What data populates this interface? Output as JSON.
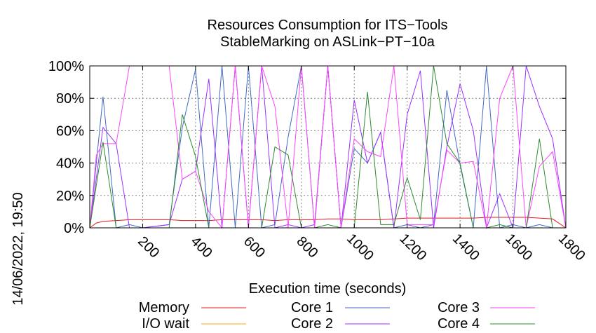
{
  "chart_data": {
    "type": "line",
    "title": "Resources Consumption for ITS−Tools",
    "subtitle": "StableMarking on ASLink−PT−10a",
    "xlabel": "Execution time (seconds)",
    "ylabel": "",
    "side_label": "14/06/2022, 19:50",
    "xlim": [
      0,
      1800
    ],
    "ylim": [
      0,
      100
    ],
    "x_ticks": [
      200,
      400,
      600,
      800,
      1000,
      1200,
      1400,
      1600,
      1800
    ],
    "y_ticks": [
      0,
      20,
      40,
      60,
      80,
      100
    ],
    "y_tick_labels": [
      "0%",
      "20%",
      "40%",
      "60%",
      "80%",
      "100%"
    ],
    "grid": true,
    "legend_position": "bottom",
    "series": [
      {
        "name": "Memory",
        "color": "#e41a1c",
        "x": [
          0,
          25,
          50,
          100,
          150,
          200,
          250,
          300,
          350,
          400,
          450,
          500,
          550,
          600,
          650,
          700,
          750,
          800,
          850,
          900,
          950,
          1000,
          1050,
          1100,
          1150,
          1200,
          1250,
          1300,
          1350,
          1400,
          1450,
          1500,
          1550,
          1600,
          1650,
          1700,
          1750,
          1800
        ],
        "y": [
          0,
          3,
          4,
          4.5,
          5,
          5,
          5,
          5,
          4.5,
          4.5,
          4.5,
          5,
          5,
          5,
          5,
          4.5,
          5,
          5,
          5,
          5.5,
          5.5,
          5,
          5,
          5,
          5.5,
          6,
          6,
          6,
          6,
          6,
          6,
          6.5,
          6.5,
          6.5,
          6.5,
          6,
          5.5,
          0
        ]
      },
      {
        "name": "I/O wait",
        "color": "#ffa500",
        "x": [
          0,
          1800
        ],
        "y": [
          0,
          0
        ]
      },
      {
        "name": "Core 1",
        "color": "#4169c4",
        "x": [
          0,
          50,
          100,
          150,
          200,
          300,
          350,
          400,
          450,
          500,
          550,
          600,
          650,
          700,
          750,
          800,
          850,
          900,
          950,
          1000,
          1050,
          1100,
          1150,
          1200,
          1250,
          1300,
          1350,
          1400,
          1450,
          1500,
          1550,
          1600,
          1650,
          1700,
          1750,
          1800
        ],
        "y": [
          0,
          81,
          0,
          2,
          0,
          2,
          62,
          98,
          0,
          100,
          0,
          100,
          0,
          2,
          56,
          100,
          0,
          100,
          0,
          49,
          40,
          59,
          0,
          2,
          0,
          2,
          85,
          39,
          0,
          100,
          0,
          2,
          0,
          2,
          0,
          0
        ]
      },
      {
        "name": "Core 2",
        "color": "#9b30ff",
        "x": [
          0,
          50,
          100,
          150,
          200,
          300,
          350,
          400,
          450,
          500,
          550,
          600,
          650,
          700,
          750,
          800,
          850,
          900,
          950,
          1000,
          1050,
          1100,
          1150,
          1200,
          1250,
          1300,
          1350,
          1400,
          1450,
          1500,
          1550,
          1600,
          1650,
          1700,
          1750,
          1800
        ],
        "y": [
          0,
          62,
          52,
          0,
          0,
          2,
          30,
          35,
          92,
          0,
          100,
          0,
          100,
          0,
          2,
          0,
          2,
          100,
          0,
          79,
          40,
          59,
          0,
          70,
          97,
          0,
          50,
          89,
          60,
          0,
          21,
          0,
          100,
          75,
          55,
          0
        ]
      },
      {
        "name": "Core 3",
        "color": "#ff44ff",
        "x": [
          0,
          25,
          50,
          100,
          150,
          200,
          300,
          350,
          400,
          450,
          500,
          550,
          600,
          650,
          700,
          750,
          800,
          850,
          900,
          950,
          1000,
          1050,
          1100,
          1150,
          1200,
          1250,
          1300,
          1350,
          1400,
          1450,
          1500,
          1550,
          1600,
          1650,
          1700,
          1750,
          1800
        ],
        "y": [
          0,
          45,
          52,
          52,
          100,
          100,
          100,
          30,
          35,
          10,
          0,
          100,
          0,
          100,
          75,
          0,
          100,
          0,
          100,
          0,
          55,
          47,
          44,
          100,
          2,
          2,
          2,
          48,
          40,
          41,
          0,
          80,
          100,
          0,
          38,
          47,
          0
        ]
      },
      {
        "name": "Core 4",
        "color": "#2e8b2e",
        "x": [
          0,
          50,
          100,
          150,
          200,
          300,
          350,
          400,
          450,
          500,
          550,
          600,
          650,
          700,
          750,
          800,
          850,
          900,
          950,
          1000,
          1050,
          1100,
          1150,
          1200,
          1250,
          1300,
          1350,
          1400,
          1450,
          1500,
          1550,
          1600,
          1650,
          1700,
          1750,
          1800
        ],
        "y": [
          0,
          53,
          0,
          0,
          0,
          0,
          70,
          44,
          0,
          0,
          0,
          0,
          0,
          50,
          45,
          0,
          0,
          2,
          0,
          0,
          84,
          2,
          2,
          31,
          5,
          100,
          52,
          40,
          0,
          0,
          2,
          0,
          0,
          55,
          0,
          0
        ]
      }
    ]
  }
}
